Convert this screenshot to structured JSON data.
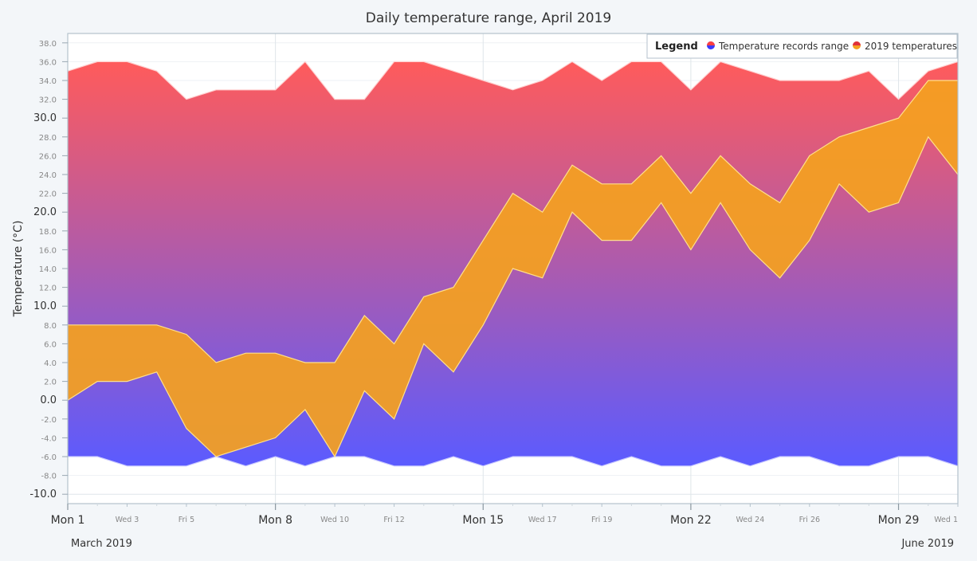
{
  "chart_data": {
    "type": "area",
    "title": "Daily temperature range, April 2019",
    "ylabel": "Temperature (°C)",
    "xlabel": "",
    "ylim": [
      -11,
      39
    ],
    "grid": true,
    "legend_position": "top-right",
    "legend": {
      "title": "Legend",
      "items": [
        "Temperature records range",
        "2019 temperatures"
      ]
    },
    "x_ticks_major": [
      "Mon 1",
      "Mon 8",
      "Mon 15",
      "Mon 22",
      "Mon 29"
    ],
    "x_ticks_minor": [
      "Wed 3",
      "Fri 5",
      "Wed 10",
      "Fri 12",
      "Wed 17",
      "Fri 19",
      "Wed 24",
      "Fri 26",
      "Wed 1"
    ],
    "x_period_labels": [
      "March 2019",
      "June 2019"
    ],
    "y_ticks": [
      "-10.0",
      "-8.0",
      "-6.0",
      "-4.0",
      "-2.0",
      "0.0",
      "2.0",
      "4.0",
      "6.0",
      "8.0",
      "10.0",
      "12.0",
      "14.0",
      "16.0",
      "18.0",
      "20.0",
      "22.0",
      "24.0",
      "26.0",
      "28.0",
      "30.0",
      "32.0",
      "34.0",
      "36.0",
      "38.0"
    ],
    "days": [
      "Apr 1",
      "Apr 2",
      "Apr 3",
      "Apr 4",
      "Apr 5",
      "Apr 6",
      "Apr 7",
      "Apr 8",
      "Apr 9",
      "Apr 10",
      "Apr 11",
      "Apr 12",
      "Apr 13",
      "Apr 14",
      "Apr 15",
      "Apr 16",
      "Apr 17",
      "Apr 18",
      "Apr 19",
      "Apr 20",
      "Apr 21",
      "Apr 22",
      "Apr 23",
      "Apr 24",
      "Apr 25",
      "Apr 26",
      "Apr 27",
      "Apr 28",
      "Apr 29",
      "Apr 30",
      "May 1"
    ],
    "series": [
      {
        "name": "Temperature records range",
        "high": [
          35,
          36,
          36,
          35,
          32,
          33,
          33,
          33,
          36,
          32,
          32,
          36,
          36,
          35,
          34,
          33,
          34,
          36,
          34,
          36,
          36,
          33,
          36,
          35,
          34,
          34,
          34,
          35,
          32,
          35,
          36
        ],
        "low": [
          -6,
          -6,
          -7,
          -7,
          -7,
          -6,
          -7,
          -6,
          -7,
          -6,
          -6,
          -7,
          -7,
          -6,
          -7,
          -6,
          -6,
          -6,
          -7,
          -6,
          -7,
          -7,
          -6,
          -7,
          -6,
          -6,
          -7,
          -7,
          -6,
          -6,
          -7
        ],
        "gradient": [
          "#ff5b5b",
          "#5b5bff"
        ]
      },
      {
        "name": "2019 temperatures",
        "high": [
          8,
          8,
          8,
          8,
          7,
          4,
          5,
          5,
          4,
          4,
          9,
          6,
          11,
          12,
          17,
          22,
          20,
          25,
          23,
          23,
          26,
          22,
          26,
          23,
          21,
          26,
          28,
          29,
          30,
          34,
          34
        ],
        "low": [
          0,
          2,
          2,
          3,
          -3,
          -6,
          -5,
          -4,
          -1,
          -6,
          1,
          -2,
          6,
          3,
          8,
          14,
          13,
          20,
          17,
          17,
          21,
          16,
          21,
          16,
          13,
          17,
          23,
          20,
          21,
          28,
          24
        ],
        "color": "#f4a020"
      }
    ]
  }
}
